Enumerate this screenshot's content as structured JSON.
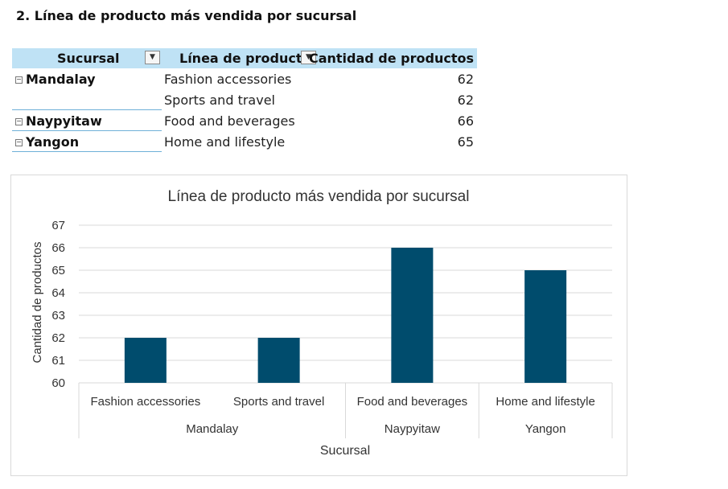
{
  "heading": "2. Línea de producto más vendida por sucursal",
  "pivot": {
    "headers": [
      "Sucursal",
      "Línea de producto",
      "Cantidad de productos"
    ],
    "rows": [
      {
        "sucursal": "Mandalay",
        "linea": "Fashion accessories",
        "cantidad": "62"
      },
      {
        "sucursal": "",
        "linea": "Sports and travel",
        "cantidad": "62"
      },
      {
        "sucursal": "Naypyitaw",
        "linea": "Food and beverages",
        "cantidad": "66"
      },
      {
        "sucursal": "Yangon",
        "linea": "Home and lifestyle",
        "cantidad": "65"
      }
    ]
  },
  "chart_data": {
    "type": "bar",
    "title": "Línea de producto más vendida por sucursal",
    "xlabel": "Sucursal",
    "ylabel": "Cantidad de productos",
    "ylim": [
      60,
      67
    ],
    "yticks": [
      "60",
      "61",
      "62",
      "63",
      "64",
      "65",
      "66",
      "67"
    ],
    "categories": [
      "Fashion accessories",
      "Sports and travel",
      "Food and beverages",
      "Home and lifestyle"
    ],
    "groups": [
      {
        "name": "Mandalay",
        "span": 2
      },
      {
        "name": "Naypyitaw",
        "span": 1
      },
      {
        "name": "Yangon",
        "span": 1
      }
    ],
    "values": [
      62,
      62,
      66,
      65
    ],
    "grid": true,
    "bar_color": "#004c6d"
  }
}
